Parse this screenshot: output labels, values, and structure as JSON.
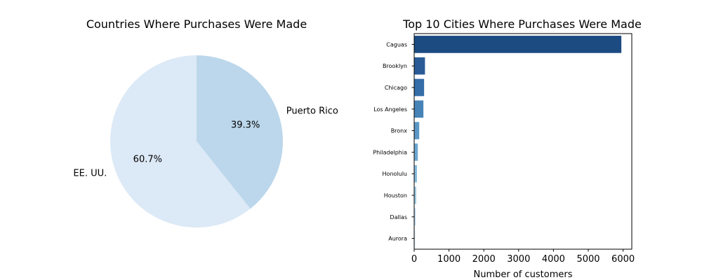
{
  "chart_data": [
    {
      "type": "pie",
      "title": "Countries Where Purchases Were Made",
      "slices": [
        {
          "label": "Puerto Rico",
          "value": 39.3,
          "pct_label": "39.3%",
          "color": "#bcd7eb"
        },
        {
          "label": "EE. UU.",
          "value": 60.7,
          "pct_label": "60.7%",
          "color": "#dce9f6"
        }
      ],
      "start_angle_deg": 90,
      "direction": "clockwise"
    },
    {
      "type": "bar",
      "orientation": "horizontal",
      "title": "Top 10 Cities Where Purchases Were Made",
      "xlabel": "Number of customers",
      "ylabel": "",
      "xlim": [
        0,
        6250
      ],
      "xticks": [
        0,
        1000,
        2000,
        3000,
        4000,
        5000,
        6000
      ],
      "xtick_labels": [
        "0",
        "1000",
        "2000",
        "3000",
        "4000",
        "5000",
        "6000"
      ],
      "categories": [
        "Caguas",
        "Brooklyn",
        "Chicago",
        "Los Angeles",
        "Bronx",
        "Philadelphia",
        "Honolulu",
        "Houston",
        "Dallas",
        "Aurora"
      ],
      "values": [
        5950,
        310,
        285,
        265,
        145,
        105,
        80,
        60,
        40,
        25
      ],
      "colors": [
        "#1c4b82",
        "#2a5b96",
        "#356ea8",
        "#4683b7",
        "#5a97c5",
        "#6ea8d2",
        "#86badc",
        "#a1cbe4",
        "#bcd9ec",
        "#d4e6f4"
      ],
      "grid": false,
      "legend": "none"
    }
  ]
}
